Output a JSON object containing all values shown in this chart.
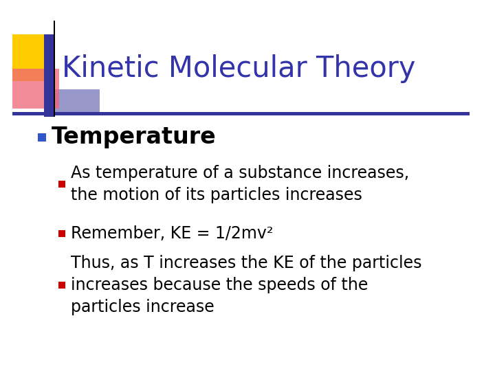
{
  "title": "Kinetic Molecular Theory",
  "title_color": "#3333aa",
  "bg_color": "#ffffff",
  "bullet1": "Temperature",
  "bullet1_color": "#000000",
  "bullet1_marker_color": "#3355cc",
  "sub_bullets": [
    "As temperature of a substance increases,\nthe motion of its particles increases",
    "Remember, KE = 1/2mv²",
    "Thus, as T increases the KE of the particles\nincreases because the speeds of the\nparticles increase"
  ],
  "sub_bullet_color": "#000000",
  "sub_bullet_marker_color": "#cc0000",
  "title_fontsize": 30,
  "bullet1_fontsize": 24,
  "sub_bullet_fontsize": 17,
  "decor_yellow_color": "#ffcc00",
  "decor_red_color": "#ee6677",
  "decor_blue_color": "#333399",
  "line_color": "#333399"
}
